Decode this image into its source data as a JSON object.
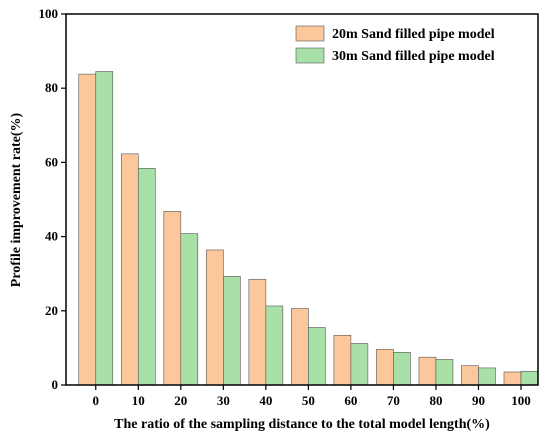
{
  "chart_data": {
    "type": "bar",
    "xlabel": "The ratio of the sampling distance to the total model length(%)",
    "ylabel": "Profile improvement rate(%)",
    "categories": [
      "0",
      "10",
      "20",
      "30",
      "40",
      "50",
      "60",
      "70",
      "80",
      "90",
      "100"
    ],
    "ylim": [
      0,
      100
    ],
    "yticks": [
      "0",
      "20",
      "40",
      "60",
      "80",
      "100"
    ],
    "grid": false,
    "legend_position": "top-right",
    "series": [
      {
        "name": "20m Sand filled pipe model",
        "color": "#fcc79a",
        "values": [
          83.8,
          62.3,
          46.8,
          36.4,
          28.5,
          20.6,
          13.4,
          9.6,
          7.5,
          5.2,
          3.5
        ]
      },
      {
        "name": "30m Sand filled pipe model",
        "color": "#a8e0a8",
        "values": [
          84.5,
          58.4,
          40.8,
          29.3,
          21.3,
          15.5,
          11.2,
          8.8,
          6.9,
          4.6,
          3.7
        ]
      }
    ]
  }
}
